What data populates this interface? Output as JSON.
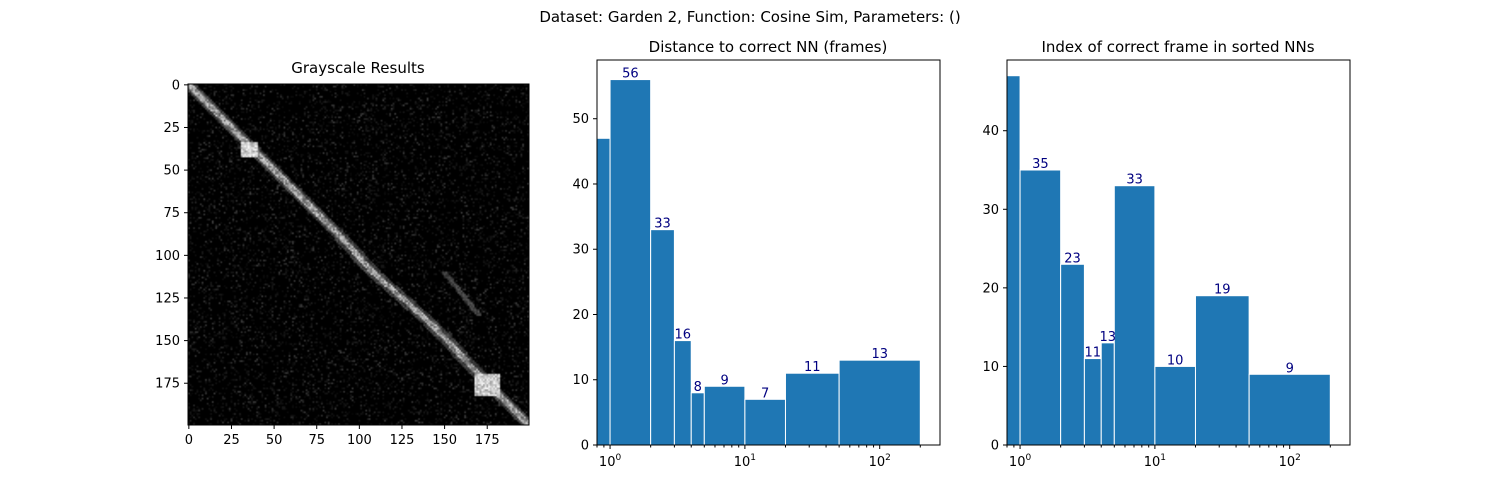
{
  "figure": {
    "suptitle": "Dataset:  Garden 2,  Function:  Cosine Sim, Parameters: ()"
  },
  "chart_data": [
    {
      "type": "heatmap",
      "title": "Grayscale Results",
      "colormap": "gray",
      "shape": [
        200,
        200
      ],
      "xticks": [
        0,
        25,
        50,
        75,
        100,
        125,
        150,
        175
      ],
      "yticks": [
        0,
        25,
        50,
        75,
        100,
        125,
        150,
        175
      ],
      "xlim": [
        0,
        199
      ],
      "ylim": [
        199,
        0
      ],
      "features": {
        "diagonal": [
          [
            3,
            3
          ],
          [
            20,
            20
          ],
          [
            38,
            38
          ],
          [
            55,
            55
          ],
          [
            90,
            90
          ],
          [
            110,
            108
          ],
          [
            140,
            142
          ],
          [
            175,
            175
          ],
          [
            195,
            195
          ]
        ],
        "bright_blocks": [
          [
            [
              34,
              31
            ],
            [
              42,
              40
            ]
          ],
          [
            [
              170,
              168
            ],
            [
              182,
              182
            ]
          ]
        ],
        "secondary_line": [
          [
            110,
            150
          ],
          [
            135,
            170
          ]
        ]
      }
    },
    {
      "type": "bar",
      "title": "Distance to correct NN (frames)",
      "xscale": "log",
      "bin_edges": [
        0,
        1,
        2,
        3,
        4,
        5,
        10,
        20,
        50,
        200
      ],
      "values": [
        47,
        56,
        33,
        16,
        8,
        9,
        7,
        11,
        13
      ],
      "data_labels": [
        "",
        "56",
        "33",
        "16",
        "8",
        "9",
        "7",
        "11",
        "13"
      ],
      "xlim": [
        0.8,
        280
      ],
      "ylim": [
        0,
        59
      ],
      "yticks": [
        0,
        10,
        20,
        30,
        40,
        50
      ],
      "xticks": [
        {
          "value": 1,
          "base": "10",
          "exp": "0"
        },
        {
          "value": 10,
          "base": "10",
          "exp": "1"
        },
        {
          "value": 100,
          "base": "10",
          "exp": "2"
        }
      ],
      "bar_color": "#1f77b4",
      "edge_color": "#ffffff",
      "label_color": "#000080"
    },
    {
      "type": "bar",
      "title": "Index of correct frame in sorted NNs",
      "xscale": "log",
      "bin_edges": [
        0,
        1,
        2,
        3,
        4,
        5,
        10,
        20,
        50,
        200
      ],
      "values": [
        47,
        35,
        23,
        11,
        13,
        33,
        10,
        19,
        9
      ],
      "data_labels": [
        "",
        "35",
        "23",
        "11",
        "13",
        "33",
        "10",
        "19",
        "9"
      ],
      "xlim": [
        0.8,
        280
      ],
      "ylim": [
        0,
        49
      ],
      "yticks": [
        0,
        10,
        20,
        30,
        40
      ],
      "xticks": [
        {
          "value": 1,
          "base": "10",
          "exp": "0"
        },
        {
          "value": 10,
          "base": "10",
          "exp": "1"
        },
        {
          "value": 100,
          "base": "10",
          "exp": "2"
        }
      ],
      "bar_color": "#1f77b4",
      "edge_color": "#ffffff",
      "label_color": "#000080"
    }
  ]
}
